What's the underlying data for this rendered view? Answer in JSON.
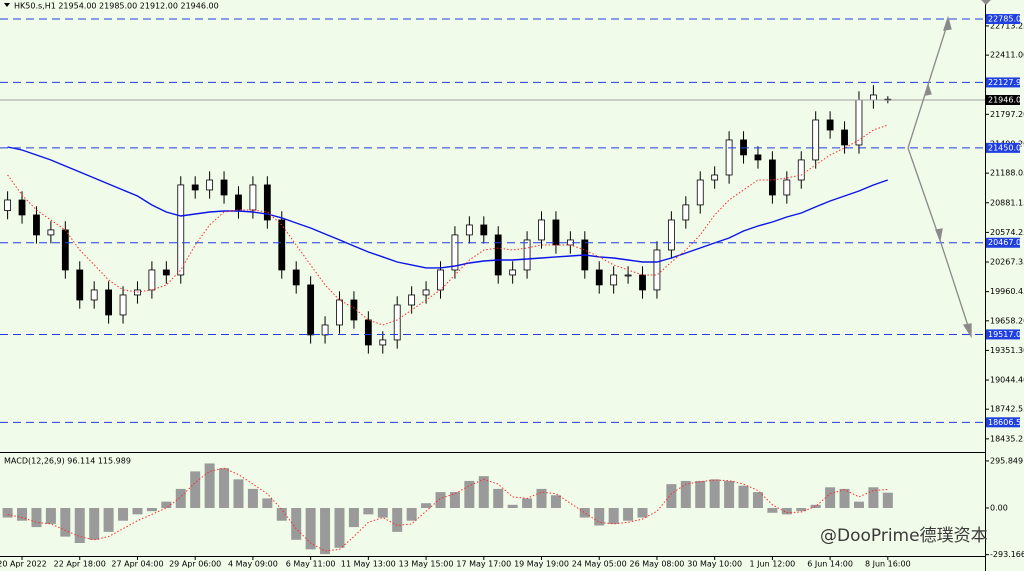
{
  "chart_data": [
    {
      "type": "candlestick",
      "title": "HK50.s,H1  21954.00 21985.00 21912.00 21946.00",
      "watermark": "@DooPrime德璞资本",
      "categories": [
        null,
        "20 Apr 2022",
        null,
        null,
        null,
        "22 Apr 18:00",
        null,
        null,
        null,
        "27 Apr 04:00",
        null,
        null,
        null,
        "29 Apr 06:00",
        null,
        null,
        null,
        "4 May 09:00",
        null,
        null,
        null,
        "6 May 11:00",
        null,
        null,
        null,
        "11 May 13:00",
        null,
        null,
        null,
        "13 May 15:00",
        null,
        null,
        null,
        "17 May 17:00",
        null,
        null,
        null,
        "19 May 19:00",
        null,
        null,
        null,
        "24 May 05:00",
        null,
        null,
        null,
        "26 May 08:00",
        null,
        null,
        null,
        "30 May 10:00",
        null,
        null,
        null,
        "1 Jun 12:00",
        null,
        null,
        null,
        "6 Jun 14:00",
        null,
        null,
        null,
        "8 Jun 16:00"
      ],
      "open": [
        20800,
        20910,
        20755,
        20548,
        20600,
        20185,
        19874,
        19978,
        19719,
        19926,
        19978,
        20185,
        20133,
        21066,
        21014,
        21117,
        20962,
        20807,
        21066,
        20703,
        20185,
        20030,
        19512,
        19615,
        19874,
        19667,
        19408,
        19460,
        19822,
        19926,
        19978,
        20185,
        20548,
        20651,
        20548,
        20133,
        20185,
        20496,
        20703,
        20444,
        20496,
        20185,
        20030,
        20133,
        20133,
        19978,
        20392,
        20703,
        20859,
        21117,
        21169,
        21532,
        21377,
        21325,
        20962,
        21117,
        21325,
        21739,
        21635,
        21480,
        21946,
        21954
      ],
      "high": [
        21000,
        21000,
        20845,
        20690,
        20690,
        20275,
        20068,
        20068,
        20016,
        20068,
        20275,
        20275,
        21156,
        21156,
        21207,
        21207,
        21052,
        21156,
        21156,
        20793,
        20275,
        20120,
        19705,
        19964,
        19964,
        19757,
        19550,
        19912,
        20016,
        20068,
        20275,
        20638,
        20741,
        20741,
        20638,
        20275,
        20586,
        20793,
        20793,
        20586,
        20586,
        20275,
        20223,
        20223,
        20223,
        20482,
        20793,
        20949,
        21207,
        21259,
        21622,
        21622,
        21467,
        21415,
        21207,
        21415,
        21829,
        21829,
        21725,
        22036,
        22100,
        21985
      ],
      "low": [
        20710,
        20665,
        20458,
        20460,
        20095,
        19784,
        19784,
        19629,
        19629,
        19836,
        19888,
        20043,
        20043,
        20924,
        20924,
        20872,
        20717,
        20717,
        20613,
        20095,
        19940,
        19422,
        19422,
        19525,
        19577,
        19318,
        19318,
        19370,
        19732,
        19836,
        19888,
        20095,
        20458,
        20458,
        20043,
        20043,
        20095,
        20406,
        20354,
        20354,
        20095,
        19940,
        19940,
        20043,
        19888,
        19888,
        20302,
        20613,
        20769,
        21027,
        21079,
        21287,
        21235,
        20872,
        20872,
        21027,
        21235,
        21545,
        21390,
        21390,
        21856,
        21912
      ],
      "close": [
        20910,
        20755,
        20548,
        20600,
        20185,
        19874,
        19978,
        19719,
        19926,
        19978,
        20185,
        20133,
        21066,
        21014,
        21117,
        20962,
        20807,
        21066,
        20703,
        20185,
        20030,
        19512,
        19615,
        19874,
        19667,
        19408,
        19460,
        19822,
        19926,
        19978,
        20185,
        20548,
        20651,
        20548,
        20133,
        20185,
        20496,
        20703,
        20444,
        20496,
        20185,
        20030,
        20133,
        20133,
        19978,
        20392,
        20703,
        20859,
        21117,
        21169,
        21532,
        21377,
        21325,
        20962,
        21117,
        21325,
        21739,
        21635,
        21480,
        21946,
        21998,
        21946
      ],
      "series": [
        {
          "color": "#0a14e6",
          "values": [
            21459,
            21428,
            21376,
            21324,
            21262,
            21200,
            21138,
            21076,
            21014,
            20951,
            20858,
            20786,
            20744,
            20765,
            20786,
            20796,
            20796,
            20786,
            20765,
            20724,
            20672,
            20620,
            20558,
            20496,
            20433,
            20371,
            20320,
            20268,
            20237,
            20206,
            20206,
            20226,
            20257,
            20278,
            20288,
            20288,
            20299,
            20309,
            20320,
            20330,
            20340,
            20320,
            20309,
            20288,
            20268,
            20268,
            20309,
            20361,
            20413,
            20465,
            20516,
            20589,
            20641,
            20682,
            20734,
            20775,
            20838,
            20900,
            20951,
            21003,
            21065,
            21117
          ]
        },
        {
          "color": "#ff2a2a",
          "dashed": true,
          "values": [
            21169,
            20962,
            20806,
            20703,
            20599,
            20392,
            20237,
            20081,
            19978,
            19957,
            19978,
            20029,
            20185,
            20444,
            20651,
            20786,
            20806,
            20806,
            20786,
            20651,
            20444,
            20237,
            20029,
            19874,
            19791,
            19667,
            19615,
            19667,
            19770,
            19874,
            19978,
            20133,
            20288,
            20392,
            20413,
            20392,
            20413,
            20444,
            20444,
            20444,
            20392,
            20320,
            20237,
            20185,
            20133,
            20133,
            20268,
            20392,
            20548,
            20755,
            20910,
            21014,
            21117,
            21117,
            21138,
            21169,
            21272,
            21376,
            21449,
            21532,
            21635,
            21686
          ]
        }
      ],
      "ylim": [
        18299,
        22982
      ],
      "yticks": [
        22713.25,
        {
          "value": 22411,
          "label": "22411.00"
        },
        {
          "value": 21797.2,
          "label": "21797.20"
        },
        {
          "value": 21490.2,
          "label": "21490.20"
        },
        21188.05,
        20881.15,
        20574.25,
        20267.35,
        19960.45,
        {
          "value": 19658.2,
          "label": "19658.20"
        },
        {
          "value": 19351.3,
          "label": "19351.30"
        },
        {
          "value": 19044.4,
          "label": "19044.40"
        },
        18742.55,
        18435.25
      ],
      "levels": [
        22785,
        22127.93,
        21450,
        20467,
        19517,
        18606.58
      ],
      "level_labels": [
        "22785.00",
        "22127.93",
        "21450.00",
        "20467.00",
        "19517.00",
        "18606.58"
      ],
      "level_color": "#1f3fe0",
      "current_price": 21946,
      "current_label": "21946.00",
      "bull_color": "#ffffff",
      "bear_color": "#000000"
    },
    {
      "type": "macd",
      "title": "MACD(12,26,9) 96.114 115.989",
      "values": [
        -60,
        -80,
        -120,
        -100,
        -180,
        -220,
        -200,
        -150,
        -80,
        -40,
        -20,
        40,
        120,
        230,
        280,
        250,
        180,
        120,
        60,
        -80,
        -200,
        -260,
        -290,
        -250,
        -120,
        -40,
        -60,
        -150,
        -80,
        30,
        100,
        100,
        170,
        200,
        120,
        20,
        60,
        120,
        80,
        0,
        -60,
        -110,
        -100,
        -80,
        -60,
        0,
        150,
        170,
        170,
        180,
        170,
        140,
        100,
        -30,
        -40,
        -20,
        20,
        130,
        120,
        40,
        130,
        96.114
      ],
      "signal": [
        -40,
        -60,
        -90,
        -100,
        -140,
        -180,
        -200,
        -180,
        -130,
        -80,
        -40,
        0,
        70,
        160,
        230,
        250,
        210,
        150,
        90,
        -10,
        -130,
        -220,
        -270,
        -260,
        -180,
        -90,
        -60,
        -110,
        -100,
        -20,
        60,
        90,
        140,
        180,
        150,
        70,
        60,
        100,
        90,
        30,
        -30,
        -90,
        -100,
        -90,
        -70,
        -20,
        90,
        150,
        165,
        175,
        172,
        150,
        110,
        20,
        -30,
        -25,
        10,
        90,
        115,
        70,
        110,
        115.989
      ],
      "color": "#9a9a9a",
      "signal_color": "#ff2a2a",
      "ylim": [
        -308,
        333
      ],
      "yticks": [
        295.849,
        {
          "value": 0,
          "label": "0.00"
        },
        -293.166
      ]
    }
  ]
}
